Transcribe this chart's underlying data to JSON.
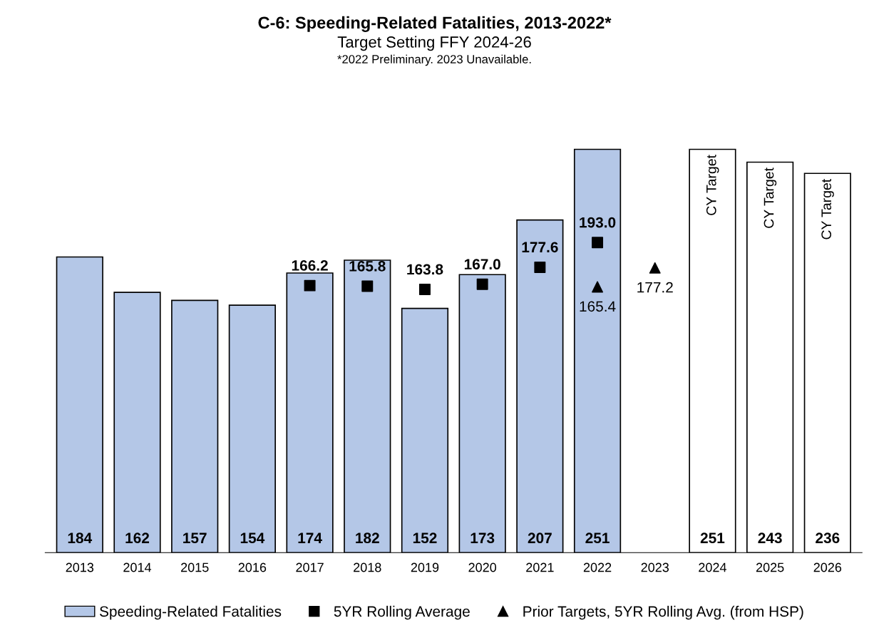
{
  "chart_data": {
    "type": "bar",
    "title": "C-6: Speeding-Related Fatalities, 2013-2022*",
    "subtitle": "Target Setting FFY 2024-26",
    "annotations": [
      "*2022 Preliminary. 2023 Unavailable.",
      "CY Target",
      "CY Target",
      "CY Target"
    ],
    "categories": [
      "2013",
      "2014",
      "2015",
      "2016",
      "2017",
      "2018",
      "2019",
      "2020",
      "2021",
      "2022",
      "2023",
      "2024",
      "2025",
      "2026"
    ],
    "series": [
      {
        "name": "Speeding-Related Fatalities",
        "colors": [
          "#b4c7e7",
          "#b4c7e7",
          "#b4c7e7",
          "#b4c7e7",
          "#b4c7e7",
          "#b4c7e7",
          "#b4c7e7",
          "#b4c7e7",
          "#b4c7e7",
          "#b4c7e7",
          null,
          "#ffffff",
          "#ffffff",
          "#ffffff"
        ],
        "values": [
          184,
          162,
          157,
          154,
          174,
          182,
          152,
          173,
          207,
          251,
          null,
          251,
          243,
          236
        ]
      },
      {
        "name": "5YR Rolling Average",
        "type": "scatter",
        "marker": "square",
        "color": "#000000",
        "values": [
          null,
          null,
          null,
          null,
          166.2,
          165.8,
          163.8,
          167.0,
          177.6,
          193.0,
          null,
          null,
          null,
          null
        ],
        "value_labels": [
          null,
          null,
          null,
          null,
          "166.2",
          "165.8",
          "163.8",
          "167.0",
          "177.6",
          "193.0",
          null,
          null,
          null,
          null
        ]
      },
      {
        "name": "Prior Targets, 5YR Rolling Avg. (from HSP)",
        "type": "scatter",
        "marker": "triangle",
        "color": "#000000",
        "values": [
          null,
          null,
          null,
          null,
          null,
          null,
          null,
          null,
          null,
          165.4,
          177.2,
          null,
          null,
          null
        ],
        "value_labels": [
          null,
          null,
          null,
          null,
          null,
          null,
          null,
          null,
          null,
          "165.4",
          "177.2",
          null,
          null,
          null
        ]
      }
    ],
    "data_labels": true,
    "legend": "bottom",
    "grid": false
  }
}
